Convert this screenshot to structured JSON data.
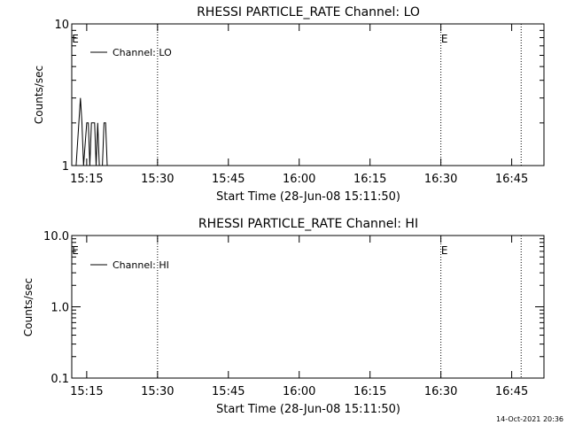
{
  "footer": {
    "timestamp": "14-Oct-2021 20:36"
  },
  "chart_data": [
    {
      "type": "line",
      "title": "RHESSI PARTICLE_RATE Channel: LO",
      "xlabel": "Start Time (28-Jun-08 15:11:50)",
      "ylabel": "Counts/sec",
      "yscale": "log",
      "ylim": [
        1,
        10
      ],
      "yticks": [
        {
          "value": 1,
          "label": "1"
        },
        {
          "value": 10,
          "label": "10"
        }
      ],
      "xlim": [
        "15:11:50",
        "16:51:50"
      ],
      "xticks": [
        "15:15",
        "15:30",
        "15:45",
        "16:00",
        "16:15",
        "16:30",
        "16:45"
      ],
      "legend": {
        "entries": [
          "Channel: LO"
        ],
        "placement": "top-left"
      },
      "grid": false,
      "markers": [
        {
          "x": "15:11:50",
          "label": "E",
          "dotted": false
        },
        {
          "x": "15:30",
          "label": "",
          "dotted": true
        },
        {
          "x": "16:30",
          "label": "E",
          "dotted": true
        },
        {
          "x": "16:47",
          "label": "",
          "dotted": true
        }
      ],
      "series": [
        {
          "name": "Channel: LO",
          "x": [
            "15:12:45",
            "15:13:20",
            "15:13:40",
            "15:14:00",
            "15:14:20",
            "15:15:00",
            "15:15:20",
            "15:15:40",
            "15:16:00",
            "15:16:40",
            "15:17:00",
            "15:17:20",
            "15:17:40",
            "15:18:20",
            "15:18:40",
            "15:19:00",
            "15:19:20"
          ],
          "y": [
            1,
            2,
            3,
            2,
            1,
            2,
            2,
            1,
            2,
            2,
            1,
            2,
            1,
            1,
            2,
            2,
            1
          ]
        }
      ]
    },
    {
      "type": "line",
      "title": "RHESSI PARTICLE_RATE Channel: HI",
      "xlabel": "Start Time (28-Jun-08 15:11:50)",
      "ylabel": "Counts/sec",
      "yscale": "log",
      "ylim": [
        0.1,
        10
      ],
      "yticks": [
        {
          "value": 0.1,
          "label": "0.1"
        },
        {
          "value": 1,
          "label": "1.0"
        },
        {
          "value": 10,
          "label": "10.0"
        }
      ],
      "xlim": [
        "15:11:50",
        "16:51:50"
      ],
      "xticks": [
        "15:15",
        "15:30",
        "15:45",
        "16:00",
        "16:15",
        "16:30",
        "16:45"
      ],
      "legend": {
        "entries": [
          "Channel: HI"
        ],
        "placement": "top-left"
      },
      "grid": false,
      "markers": [
        {
          "x": "15:11:50",
          "label": "E",
          "dotted": false
        },
        {
          "x": "15:30",
          "label": "",
          "dotted": true
        },
        {
          "x": "16:30",
          "label": "E",
          "dotted": true
        },
        {
          "x": "16:47",
          "label": "",
          "dotted": true
        }
      ],
      "series": [
        {
          "name": "Channel: HI",
          "x": [],
          "y": []
        }
      ]
    }
  ]
}
